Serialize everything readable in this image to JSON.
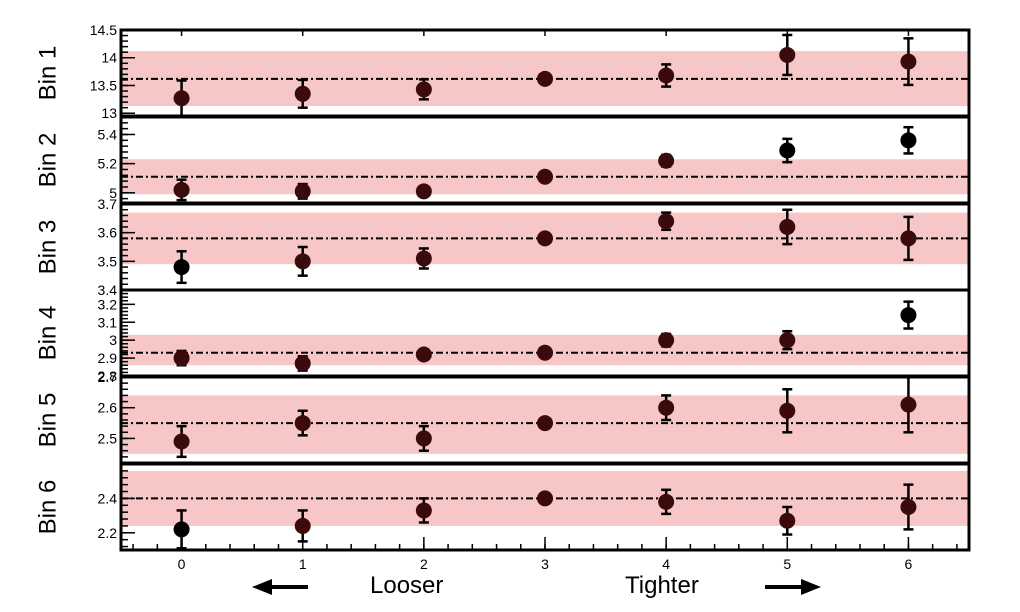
{
  "chart_data": {
    "type": "scatter",
    "x_ticks": [
      0,
      1,
      2,
      3,
      4,
      5,
      6
    ],
    "xlim": [
      -0.5,
      6.5
    ],
    "direction_labels": {
      "left": "Looser",
      "right": "Tighter"
    },
    "colors": {
      "band": "#f7c6c6",
      "point": "#000000",
      "point_in_band": "#3b0a0a",
      "frame": "#000000"
    },
    "panels": [
      {
        "label": "Bin 1",
        "ylim": [
          12.95,
          14.5
        ],
        "y_ticks": [
          13,
          13.5,
          14,
          14.5
        ],
        "y_tick_labels": [
          "13",
          "13.5",
          "14",
          "14.5"
        ],
        "reference": 13.62,
        "band": [
          13.13,
          14.12
        ],
        "points": [
          {
            "x": 0,
            "y": 13.27,
            "err": 0.32
          },
          {
            "x": 1,
            "y": 13.35,
            "err": 0.25
          },
          {
            "x": 2,
            "y": 13.43,
            "err": 0.18
          },
          {
            "x": 3,
            "y": 13.62,
            "err": 0.03
          },
          {
            "x": 4,
            "y": 13.68,
            "err": 0.2
          },
          {
            "x": 5,
            "y": 14.05,
            "err": 0.36
          },
          {
            "x": 6,
            "y": 13.93,
            "err": 0.42
          }
        ]
      },
      {
        "label": "Bin 2",
        "ylim": [
          4.93,
          5.52
        ],
        "y_ticks": [
          5,
          5.2,
          5.4
        ],
        "y_tick_labels": [
          "5",
          "5.2",
          "5.4"
        ],
        "reference": 5.11,
        "band": [
          4.99,
          5.23
        ],
        "points": [
          {
            "x": 0,
            "y": 5.02,
            "err": 0.07
          },
          {
            "x": 1,
            "y": 5.01,
            "err": 0.05
          },
          {
            "x": 2,
            "y": 5.01,
            "err": 0.02
          },
          {
            "x": 3,
            "y": 5.11,
            "err": 0.01
          },
          {
            "x": 4,
            "y": 5.22,
            "err": 0.04
          },
          {
            "x": 5,
            "y": 5.29,
            "err": 0.08
          },
          {
            "x": 6,
            "y": 5.36,
            "err": 0.09
          }
        ]
      },
      {
        "label": "Bin 3",
        "ylim": [
          3.4,
          3.7
        ],
        "y_ticks": [
          3.4,
          3.5,
          3.6,
          3.7
        ],
        "y_tick_labels": [
          "3.4",
          "3.5",
          "3.6",
          "3.7"
        ],
        "reference": 3.58,
        "band": [
          3.49,
          3.67
        ],
        "points": [
          {
            "x": 0,
            "y": 3.48,
            "err": 0.055
          },
          {
            "x": 1,
            "y": 3.5,
            "err": 0.05
          },
          {
            "x": 2,
            "y": 3.51,
            "err": 0.035
          },
          {
            "x": 3,
            "y": 3.58,
            "err": 0.005
          },
          {
            "x": 4,
            "y": 3.64,
            "err": 0.03
          },
          {
            "x": 5,
            "y": 3.62,
            "err": 0.06
          },
          {
            "x": 6,
            "y": 3.58,
            "err": 0.075
          }
        ]
      },
      {
        "label": "Bin 4",
        "ylim": [
          2.8,
          3.28
        ],
        "y_ticks": [
          2.8,
          2.9,
          3,
          3.1,
          3.2
        ],
        "y_tick_labels": [
          "2.8",
          "2.9",
          "3",
          "3.1",
          "3.2"
        ],
        "reference": 2.93,
        "band": [
          2.86,
          3.03
        ],
        "points": [
          {
            "x": 0,
            "y": 2.9,
            "err": 0.04
          },
          {
            "x": 1,
            "y": 2.87,
            "err": 0.04
          },
          {
            "x": 2,
            "y": 2.92,
            "err": 0.015
          },
          {
            "x": 3,
            "y": 2.93,
            "err": 0.005
          },
          {
            "x": 4,
            "y": 3.0,
            "err": 0.035
          },
          {
            "x": 5,
            "y": 3.0,
            "err": 0.05
          },
          {
            "x": 6,
            "y": 3.14,
            "err": 0.075
          }
        ]
      },
      {
        "label": "Bin 5",
        "ylim": [
          2.42,
          2.7
        ],
        "y_ticks": [
          2.5,
          2.6,
          2.7
        ],
        "y_tick_labels": [
          "2.5",
          "2.6",
          "2.7"
        ],
        "reference": 2.55,
        "band": [
          2.45,
          2.64
        ],
        "points": [
          {
            "x": 0,
            "y": 2.49,
            "err": 0.05
          },
          {
            "x": 1,
            "y": 2.55,
            "err": 0.04
          },
          {
            "x": 2,
            "y": 2.5,
            "err": 0.04
          },
          {
            "x": 3,
            "y": 2.55,
            "err": 0.005
          },
          {
            "x": 4,
            "y": 2.6,
            "err": 0.04
          },
          {
            "x": 5,
            "y": 2.59,
            "err": 0.07
          },
          {
            "x": 6,
            "y": 2.61,
            "err": 0.09
          }
        ]
      },
      {
        "label": "Bin 6",
        "ylim": [
          2.1,
          2.6
        ],
        "y_ticks": [
          2.2,
          2.4
        ],
        "y_tick_labels": [
          "2.2",
          "2.4"
        ],
        "reference": 2.4,
        "band": [
          2.24,
          2.56
        ],
        "points": [
          {
            "x": 0,
            "y": 2.22,
            "err": 0.11
          },
          {
            "x": 1,
            "y": 2.24,
            "err": 0.09
          },
          {
            "x": 2,
            "y": 2.33,
            "err": 0.07
          },
          {
            "x": 3,
            "y": 2.4,
            "err": 0.01
          },
          {
            "x": 4,
            "y": 2.38,
            "err": 0.07
          },
          {
            "x": 5,
            "y": 2.27,
            "err": 0.08
          },
          {
            "x": 6,
            "y": 2.35,
            "err": 0.13
          }
        ]
      }
    ]
  }
}
